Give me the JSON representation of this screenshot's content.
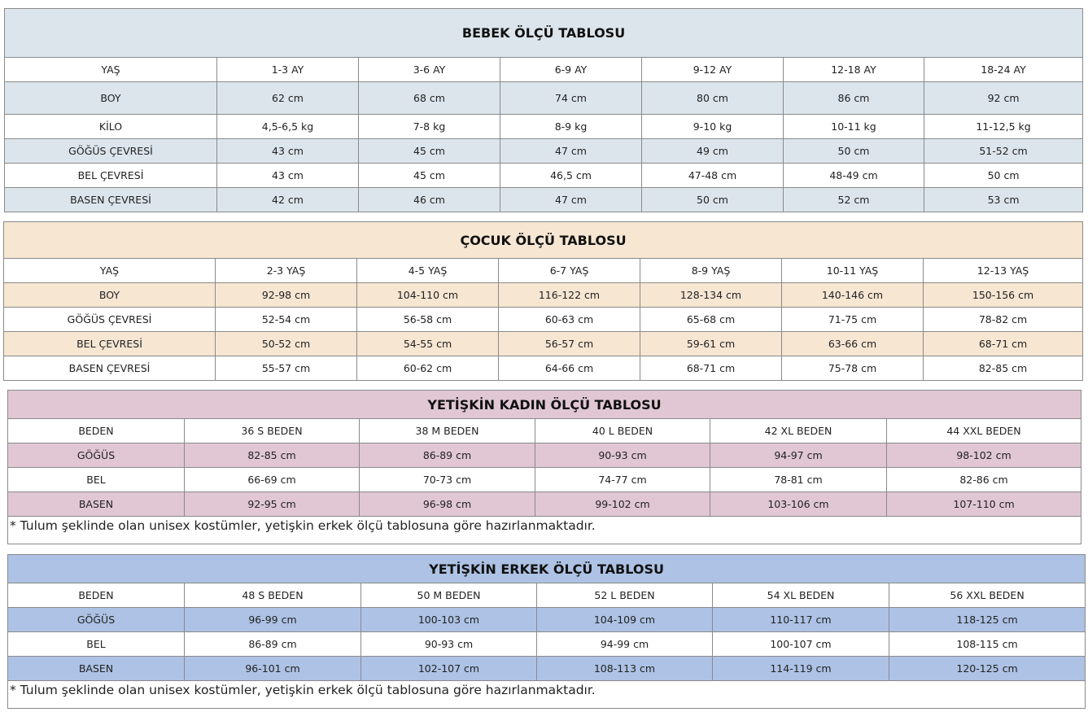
{
  "tables": [
    {
      "id": "bebek",
      "title": "BEBEK ÖLÇÜ TABLOSU",
      "color": "#dce5ec",
      "header": [
        "YAŞ",
        "1-3 AY",
        "3-6 AY",
        "6-9 AY",
        "9-12 AY",
        "12-18 AY",
        "18-24 AY"
      ],
      "rows": [
        [
          "BOY",
          "62 cm",
          "68 cm",
          "74 cm",
          "80 cm",
          "86 cm",
          "92 cm"
        ],
        [
          "KİLO",
          "4,5-6,5 kg",
          "7-8 kg",
          "8-9 kg",
          "9-10 kg",
          "10-11 kg",
          "11-12,5 kg"
        ],
        [
          "GÖĞÜS ÇEVRESİ",
          "43 cm",
          "45 cm",
          "47 cm",
          "49 cm",
          "50 cm",
          "51-52 cm"
        ],
        [
          "BEL ÇEVRESİ",
          "43 cm",
          "45 cm",
          "46,5 cm",
          "47-48 cm",
          "48-49 cm",
          "50 cm"
        ],
        [
          "BASEN ÇEVRESİ",
          "42 cm",
          "46 cm",
          "47 cm",
          "50 cm",
          "52 cm",
          "53 cm"
        ]
      ]
    },
    {
      "id": "cocuk",
      "title": "ÇOCUK ÖLÇÜ TABLOSU",
      "color": "#f6e6d2",
      "header": [
        "YAŞ",
        "2-3 YAŞ",
        "4-5 YAŞ",
        "6-7 YAŞ",
        "8-9 YAŞ",
        "10-11 YAŞ",
        "12-13 YAŞ"
      ],
      "rows": [
        [
          "BOY",
          "92-98 cm",
          "104-110 cm",
          "116-122 cm",
          "128-134 cm",
          "140-146 cm",
          "150-156 cm"
        ],
        [
          "GÖĞÜS ÇEVRESİ",
          "52-54 cm",
          "56-58 cm",
          "60-63 cm",
          "65-68 cm",
          "71-75 cm",
          "78-82 cm"
        ],
        [
          "BEL ÇEVRESİ",
          "50-52 cm",
          "54-55 cm",
          "56-57 cm",
          "59-61 cm",
          "63-66 cm",
          "68-71 cm"
        ],
        [
          "BASEN ÇEVRESİ",
          "55-57 cm",
          "60-62 cm",
          "64-66 cm",
          "68-71 cm",
          "75-78 cm",
          "82-85 cm"
        ]
      ]
    },
    {
      "id": "kadin",
      "title": "YETİŞKİN KADIN ÖLÇÜ TABLOSU",
      "color": "#e0c7d3",
      "header": [
        "BEDEN",
        "36 S BEDEN",
        "38 M BEDEN",
        "40 L BEDEN",
        "42 XL BEDEN",
        "44 XXL BEDEN"
      ],
      "rows": [
        [
          "GÖĞÜS",
          "82-85 cm",
          "86-89 cm",
          "90-93 cm",
          "94-97 cm",
          "98-102 cm"
        ],
        [
          "BEL",
          "66-69 cm",
          "70-73 cm",
          "74-77 cm",
          "78-81 cm",
          "82-86 cm"
        ],
        [
          "BASEN",
          "92-95 cm",
          "96-98 cm",
          "99-102 cm",
          "103-106 cm",
          "107-110 cm"
        ]
      ],
      "note": "* Tulum şeklinde olan unisex kostümler, yetişkin erkek ölçü tablosuna göre hazırlanmaktadır."
    },
    {
      "id": "erkek",
      "title": "YETİŞKİN ERKEK ÖLÇÜ TABLOSU",
      "color": "#adc2e4",
      "header": [
        "BEDEN",
        "48 S BEDEN",
        "50 M BEDEN",
        "52 L BEDEN",
        "54 XL BEDEN",
        "56 XXL BEDEN"
      ],
      "rows": [
        [
          "GÖĞÜS",
          "96-99 cm",
          "100-103 cm",
          "104-109 cm",
          "110-117 cm",
          "118-125 cm"
        ],
        [
          "BEL",
          "86-89 cm",
          "90-93 cm",
          "94-99 cm",
          "100-107 cm",
          "108-115 cm"
        ],
        [
          "BASEN",
          "96-101 cm",
          "102-107 cm",
          "108-113 cm",
          "114-119 cm",
          "120-125 cm"
        ]
      ],
      "note": "* Tulum şeklinde olan unisex kostümler, yetişkin erkek ölçü  tablosuna göre hazırlanmaktadır."
    }
  ]
}
